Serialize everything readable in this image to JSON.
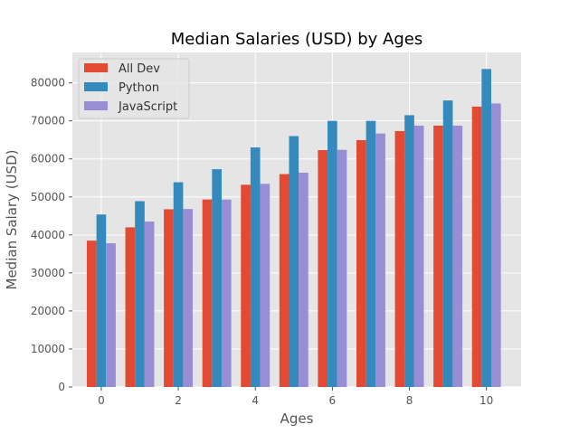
{
  "chart_data": {
    "type": "bar",
    "title": "Median Salaries (USD) by Ages",
    "xlabel": "Ages",
    "ylabel": "Median Salary (USD)",
    "x": [
      0,
      1,
      2,
      3,
      4,
      5,
      6,
      7,
      8,
      9,
      10
    ],
    "x_ticks": [
      "0",
      "2",
      "4",
      "6",
      "8",
      "10"
    ],
    "x_tick_values": [
      0,
      2,
      4,
      6,
      8,
      10
    ],
    "y_ticks": [
      "0",
      "10000",
      "20000",
      "30000",
      "40000",
      "50000",
      "60000",
      "70000",
      "80000"
    ],
    "y_tick_values": [
      0,
      10000,
      20000,
      30000,
      40000,
      50000,
      60000,
      70000,
      80000
    ],
    "xlim": [
      -0.75,
      10.9
    ],
    "ylim": [
      0,
      88000
    ],
    "grid": true,
    "legend_position": "top-left",
    "series": [
      {
        "name": "All Dev",
        "color": "#e24a33",
        "values": [
          38496,
          42000,
          46752,
          49320,
          53200,
          56000,
          62316,
          64928,
          67317,
          68748,
          73752
        ]
      },
      {
        "name": "Python",
        "color": "#348abd",
        "values": [
          45372,
          48876,
          53850,
          57287,
          63016,
          65998,
          70003,
          70000,
          71496,
          75370,
          83640
        ]
      },
      {
        "name": "JavaScript",
        "color": "#988ed5",
        "values": [
          37810,
          43515,
          46823,
          49293,
          53437,
          56373,
          62375,
          66674,
          68745,
          68746,
          74583
        ]
      }
    ]
  }
}
